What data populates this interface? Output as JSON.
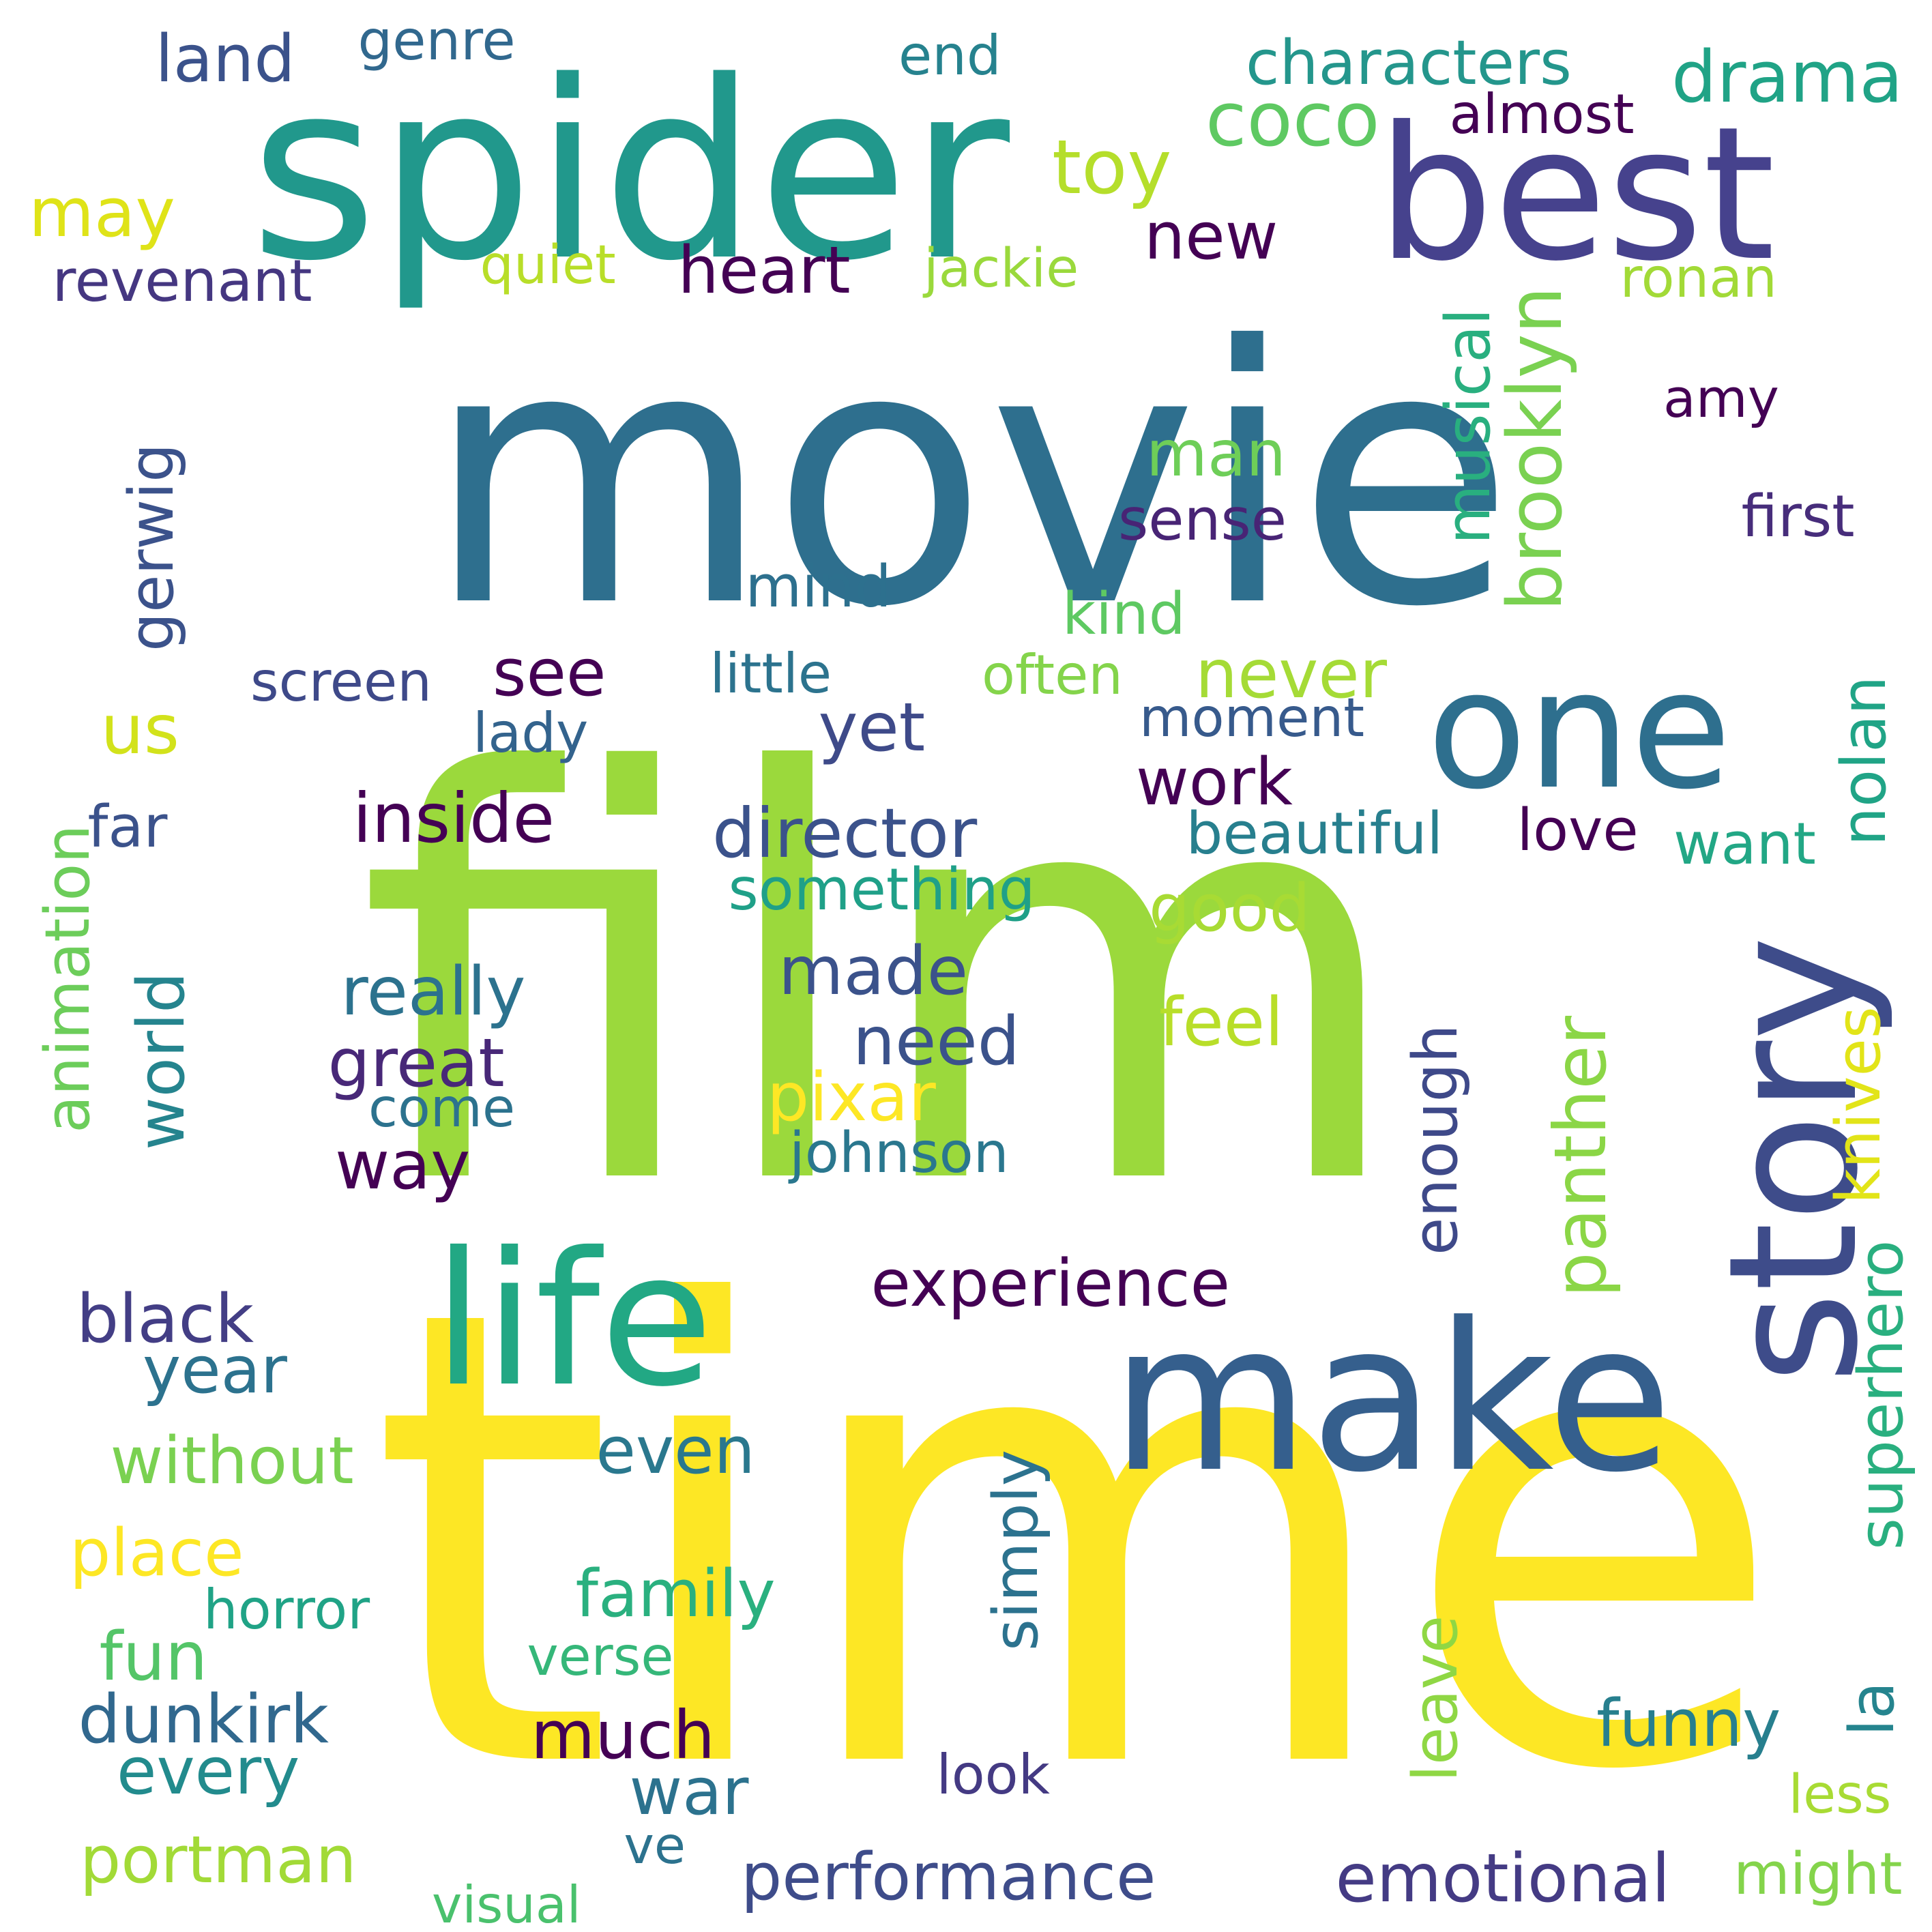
{
  "words": [
    {
      "id": "movie",
      "text": "movie",
      "color": "#2e6f8e",
      "rotated": false
    },
    {
      "id": "film",
      "text": "film",
      "color": "#9bd93c",
      "rotated": false
    },
    {
      "id": "time",
      "text": "time",
      "color": "#fde725",
      "rotated": false
    },
    {
      "id": "spider",
      "text": "spider",
      "color": "#21988c",
      "rotated": false
    },
    {
      "id": "best",
      "text": "best",
      "color": "#46428d",
      "rotated": false
    },
    {
      "id": "make",
      "text": "make",
      "color": "#355f8d",
      "rotated": false
    },
    {
      "id": "life",
      "text": "life",
      "color": "#22a884",
      "rotated": false
    },
    {
      "id": "one",
      "text": "one",
      "color": "#2e6f8e",
      "rotated": false
    },
    {
      "id": "story",
      "text": "story",
      "color": "#3e4c8a",
      "rotated": true
    },
    {
      "id": "characters",
      "text": "characters",
      "color": "#24968c",
      "rotated": false
    },
    {
      "id": "drama",
      "text": "drama",
      "color": "#20a386",
      "rotated": false
    },
    {
      "id": "coco",
      "text": "coco",
      "color": "#5ec962",
      "rotated": false
    },
    {
      "id": "almost",
      "text": "almost",
      "color": "#440154",
      "rotated": false
    },
    {
      "id": "toy",
      "text": "toy",
      "color": "#b5de2b",
      "rotated": false
    },
    {
      "id": "land",
      "text": "land",
      "color": "#3b528b",
      "rotated": false
    },
    {
      "id": "genre",
      "text": "genre",
      "color": "#31688e",
      "rotated": false
    },
    {
      "id": "end",
      "text": "end",
      "color": "#26828e",
      "rotated": false
    },
    {
      "id": "may",
      "text": "may",
      "color": "#dfe318",
      "rotated": false
    },
    {
      "id": "revenant",
      "text": "revenant",
      "color": "#453781",
      "rotated": false
    },
    {
      "id": "quiet",
      "text": "quiet",
      "color": "#b8de29",
      "rotated": false
    },
    {
      "id": "heart",
      "text": "heart",
      "color": "#440154",
      "rotated": false
    },
    {
      "id": "jackie",
      "text": "jackie",
      "color": "#9ad93c",
      "rotated": false
    },
    {
      "id": "new",
      "text": "new",
      "color": "#440154",
      "rotated": false
    },
    {
      "id": "ronan",
      "text": "ronan",
      "color": "#a2da37",
      "rotated": false
    },
    {
      "id": "brooklyn",
      "text": "brooklyn",
      "color": "#7ad151",
      "rotated": true
    },
    {
      "id": "musical",
      "text": "musical",
      "color": "#29af7f",
      "rotated": true
    },
    {
      "id": "amy",
      "text": "amy",
      "color": "#440154",
      "rotated": false
    },
    {
      "id": "gerwig",
      "text": "gerwig",
      "color": "#3b528b",
      "rotated": true
    },
    {
      "id": "man",
      "text": "man",
      "color": "#6ece58",
      "rotated": false
    },
    {
      "id": "sense",
      "text": "sense",
      "color": "#482475",
      "rotated": false
    },
    {
      "id": "first",
      "text": "first",
      "color": "#472d7b",
      "rotated": false
    },
    {
      "id": "mind",
      "text": "mind",
      "color": "#2d708e",
      "rotated": false
    },
    {
      "id": "kind",
      "text": "kind",
      "color": "#5ec962",
      "rotated": false
    },
    {
      "id": "screen",
      "text": "screen",
      "color": "#3e4989",
      "rotated": false
    },
    {
      "id": "see",
      "text": "see",
      "color": "#440154",
      "rotated": false
    },
    {
      "id": "little",
      "text": "little",
      "color": "#2c738e",
      "rotated": false
    },
    {
      "id": "often",
      "text": "often",
      "color": "#84d44b",
      "rotated": false
    },
    {
      "id": "never",
      "text": "never",
      "color": "#a5db36",
      "rotated": false
    },
    {
      "id": "us",
      "text": "us",
      "color": "#d2e21b",
      "rotated": false
    },
    {
      "id": "lady",
      "text": "lady",
      "color": "#33638d",
      "rotated": false
    },
    {
      "id": "yet",
      "text": "yet",
      "color": "#3e4a89",
      "rotated": false
    },
    {
      "id": "moment",
      "text": "moment",
      "color": "#375a8c",
      "rotated": false
    },
    {
      "id": "nolan",
      "text": "nolan",
      "color": "#20a486",
      "rotated": true
    },
    {
      "id": "work",
      "text": "work",
      "color": "#440154",
      "rotated": false
    },
    {
      "id": "inside",
      "text": "inside",
      "color": "#440154",
      "rotated": false
    },
    {
      "id": "far",
      "text": "far",
      "color": "#3b528b",
      "rotated": false
    },
    {
      "id": "animation",
      "text": "animation",
      "color": "#6ccd5a",
      "rotated": true
    },
    {
      "id": "director",
      "text": "director",
      "color": "#3b528b",
      "rotated": false
    },
    {
      "id": "beautiful",
      "text": "beautiful",
      "color": "#277f8e",
      "rotated": false
    },
    {
      "id": "love",
      "text": "love",
      "color": "#440154",
      "rotated": false
    },
    {
      "id": "want",
      "text": "want",
      "color": "#22a785",
      "rotated": false
    },
    {
      "id": "something",
      "text": "something",
      "color": "#1fa088",
      "rotated": false
    },
    {
      "id": "good",
      "text": "good",
      "color": "#a8db34",
      "rotated": false
    },
    {
      "id": "really",
      "text": "really",
      "color": "#2c728e",
      "rotated": false
    },
    {
      "id": "made",
      "text": "made",
      "color": "#3b528b",
      "rotated": false
    },
    {
      "id": "world",
      "text": "world",
      "color": "#25848e",
      "rotated": true
    },
    {
      "id": "feel",
      "text": "feel",
      "color": "#b8de29",
      "rotated": false
    },
    {
      "id": "panther",
      "text": "panther",
      "color": "#8bd646",
      "rotated": true
    },
    {
      "id": "knives",
      "text": "knives",
      "color": "#e2e418",
      "rotated": true
    },
    {
      "id": "need",
      "text": "need",
      "color": "#3b528b",
      "rotated": false
    },
    {
      "id": "great",
      "text": "great",
      "color": "#482878",
      "rotated": false
    },
    {
      "id": "pixar",
      "text": "pixar",
      "color": "#fde725",
      "rotated": false
    },
    {
      "id": "come",
      "text": "come",
      "color": "#2c728e",
      "rotated": false
    },
    {
      "id": "enough",
      "text": "enough",
      "color": "#3e4989",
      "rotated": true
    },
    {
      "id": "johnson",
      "text": "johnson",
      "color": "#2a778e",
      "rotated": false
    },
    {
      "id": "way",
      "text": "way",
      "color": "#440154",
      "rotated": false
    },
    {
      "id": "experience",
      "text": "experience",
      "color": "#440154",
      "rotated": false
    },
    {
      "id": "black",
      "text": "black",
      "color": "#433e85",
      "rotated": false
    },
    {
      "id": "year",
      "text": "year",
      "color": "#2c728e",
      "rotated": false
    },
    {
      "id": "superhero",
      "text": "superhero",
      "color": "#29af7f",
      "rotated": true
    },
    {
      "id": "without",
      "text": "without",
      "color": "#7ad151",
      "rotated": false
    },
    {
      "id": "even",
      "text": "even",
      "color": "#2a788e",
      "rotated": false
    },
    {
      "id": "simply",
      "text": "simply",
      "color": "#2c728e",
      "rotated": true
    },
    {
      "id": "place",
      "text": "place",
      "color": "#fde725",
      "rotated": false
    },
    {
      "id": "family",
      "text": "family",
      "color": "#2ab07f",
      "rotated": false
    },
    {
      "id": "horror",
      "text": "horror",
      "color": "#20a386",
      "rotated": false
    },
    {
      "id": "verse",
      "text": "verse",
      "color": "#35b779",
      "rotated": false
    },
    {
      "id": "fun",
      "text": "fun",
      "color": "#54c568",
      "rotated": false
    },
    {
      "id": "leave",
      "text": "leave",
      "color": "#8fd744",
      "rotated": true
    },
    {
      "id": "la",
      "text": "la",
      "color": "#25848e",
      "rotated": true
    },
    {
      "id": "funny",
      "text": "funny",
      "color": "#277f8e",
      "rotated": false
    },
    {
      "id": "dunkirk",
      "text": "dunkirk",
      "color": "#31688e",
      "rotated": false
    },
    {
      "id": "much",
      "text": "much",
      "color": "#440154",
      "rotated": false
    },
    {
      "id": "every",
      "text": "every",
      "color": "#228b8d",
      "rotated": false
    },
    {
      "id": "war",
      "text": "war",
      "color": "#2c728e",
      "rotated": false
    },
    {
      "id": "look",
      "text": "look",
      "color": "#443a83",
      "rotated": false
    },
    {
      "id": "less",
      "text": "less",
      "color": "#a8db34",
      "rotated": false
    },
    {
      "id": "ve",
      "text": "ve",
      "color": "#2c728e",
      "rotated": false
    },
    {
      "id": "portman",
      "text": "portman",
      "color": "#a2da37",
      "rotated": false
    },
    {
      "id": "performance",
      "text": "performance",
      "color": "#3e4c8a",
      "rotated": false
    },
    {
      "id": "emotional",
      "text": "emotional",
      "color": "#443b84",
      "rotated": false
    },
    {
      "id": "might",
      "text": "might",
      "color": "#84d44b",
      "rotated": false
    },
    {
      "id": "visual",
      "text": "visual",
      "color": "#4ac16d",
      "rotated": false
    }
  ]
}
